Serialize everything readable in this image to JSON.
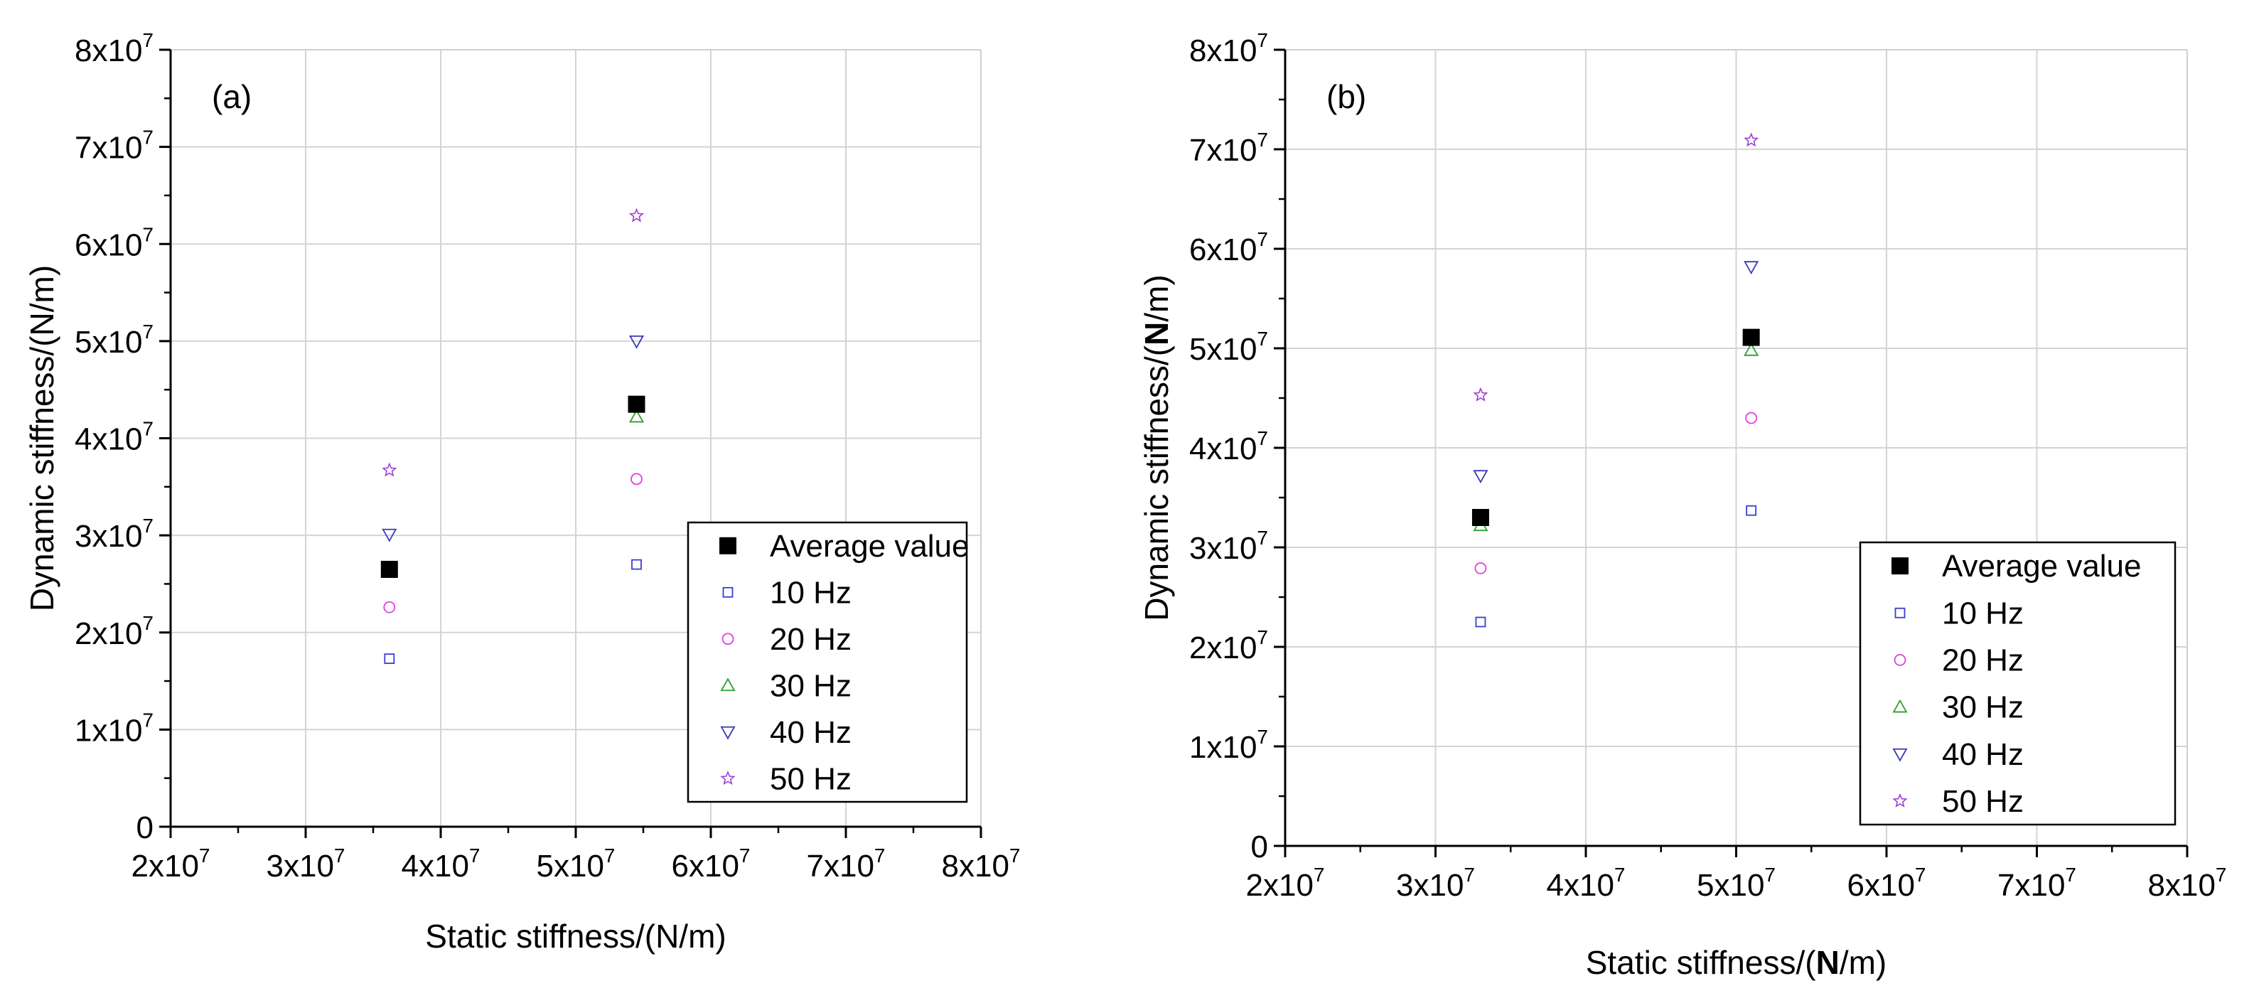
{
  "chart_data": [
    {
      "type": "scatter",
      "panel_label": "(a)",
      "xlabel": "Static stiffness/(N/m)",
      "ylabel": "Dynamic stiffness/(N/m)",
      "xlim": [
        20000000,
        80000000
      ],
      "ylim": [
        0,
        80000000
      ],
      "x_ticks": [
        20000000,
        30000000,
        40000000,
        50000000,
        60000000,
        70000000,
        80000000
      ],
      "y_ticks": [
        0,
        10000000,
        20000000,
        30000000,
        40000000,
        50000000,
        60000000,
        70000000,
        80000000
      ],
      "x_tick_labels": [
        {
          "base": "2x10",
          "exp": "7"
        },
        {
          "base": "3x10",
          "exp": "7"
        },
        {
          "base": "4x10",
          "exp": "7"
        },
        {
          "base": "5x10",
          "exp": "7"
        },
        {
          "base": "6x10",
          "exp": "7"
        },
        {
          "base": "7x10",
          "exp": "7"
        },
        {
          "base": "8x10",
          "exp": "7"
        }
      ],
      "y_tick_labels": [
        {
          "base": "0",
          "exp": ""
        },
        {
          "base": "1x10",
          "exp": "7"
        },
        {
          "base": "2x10",
          "exp": "7"
        },
        {
          "base": "3x10",
          "exp": "7"
        },
        {
          "base": "4x10",
          "exp": "7"
        },
        {
          "base": "5x10",
          "exp": "7"
        },
        {
          "base": "6x10",
          "exp": "7"
        },
        {
          "base": "7x10",
          "exp": "7"
        },
        {
          "base": "8x10",
          "exp": "7"
        }
      ],
      "grid": true,
      "legend_position": "bottom-right",
      "series": [
        {
          "name": "Average value",
          "marker": "filled-square",
          "color": "#000000",
          "x": [
            36200000,
            54500000
          ],
          "y": [
            26500000,
            43500000
          ]
        },
        {
          "name": "10 Hz",
          "marker": "square",
          "color": "#3b3bd6",
          "x": [
            36200000,
            54500000
          ],
          "y": [
            17300000,
            27000000
          ]
        },
        {
          "name": "20 Hz",
          "marker": "circle",
          "color": "#e040e0",
          "x": [
            36200000,
            54500000
          ],
          "y": [
            22600000,
            35800000
          ]
        },
        {
          "name": "30 Hz",
          "marker": "triangle-up",
          "color": "#2e9e2e",
          "x": [
            36200000,
            54500000
          ],
          "y": [
            26200000,
            42200000
          ]
        },
        {
          "name": "40 Hz",
          "marker": "triangle-down",
          "color": "#3a3ab8",
          "x": [
            36200000,
            54500000
          ],
          "y": [
            30100000,
            50000000
          ]
        },
        {
          "name": "50 Hz",
          "marker": "star",
          "color": "#a040d8",
          "x": [
            36200000,
            54500000
          ],
          "y": [
            36700000,
            62900000
          ]
        }
      ]
    },
    {
      "type": "scatter",
      "panel_label": "(b)",
      "xlabel_parts": [
        "Static stiffness/(",
        "N",
        "/m)"
      ],
      "ylabel_parts": [
        "Dynamic stiffness/(",
        "N",
        "/m)"
      ],
      "xlim": [
        20000000,
        80000000
      ],
      "ylim": [
        0,
        80000000
      ],
      "x_ticks": [
        20000000,
        30000000,
        40000000,
        50000000,
        60000000,
        70000000,
        80000000
      ],
      "y_ticks": [
        0,
        10000000,
        20000000,
        30000000,
        40000000,
        50000000,
        60000000,
        70000000,
        80000000
      ],
      "x_tick_labels": [
        {
          "base": "2x10",
          "exp": "7"
        },
        {
          "base": "3x10",
          "exp": "7"
        },
        {
          "base": "4x10",
          "exp": "7"
        },
        {
          "base": "5x10",
          "exp": "7"
        },
        {
          "base": "6x10",
          "exp": "7"
        },
        {
          "base": "7x10",
          "exp": "7"
        },
        {
          "base": "8x10",
          "exp": "7"
        }
      ],
      "y_tick_labels": [
        {
          "base": "0",
          "exp": ""
        },
        {
          "base": "1x10",
          "exp": "7"
        },
        {
          "base": "2x10",
          "exp": "7"
        },
        {
          "base": "3x10",
          "exp": "7"
        },
        {
          "base": "4x10",
          "exp": "7"
        },
        {
          "base": "5x10",
          "exp": "7"
        },
        {
          "base": "6x10",
          "exp": "7"
        },
        {
          "base": "7x10",
          "exp": "7"
        },
        {
          "base": "8x10",
          "exp": "7"
        }
      ],
      "grid": true,
      "legend_position": "bottom-right",
      "series": [
        {
          "name": "Average value",
          "marker": "filled-square",
          "color": "#000000",
          "x": [
            33000000,
            51000000
          ],
          "y": [
            33000000,
            51100000
          ]
        },
        {
          "name": "10 Hz",
          "marker": "square",
          "color": "#3b3bd6",
          "x": [
            33000000,
            51000000
          ],
          "y": [
            22500000,
            33700000
          ]
        },
        {
          "name": "20 Hz",
          "marker": "circle",
          "color": "#e040e0",
          "x": [
            33000000,
            51000000
          ],
          "y": [
            27900000,
            43000000
          ]
        },
        {
          "name": "30 Hz",
          "marker": "triangle-up",
          "color": "#2e9e2e",
          "x": [
            33000000,
            51000000
          ],
          "y": [
            32200000,
            49800000
          ]
        },
        {
          "name": "40 Hz",
          "marker": "triangle-down",
          "color": "#3a3ab8",
          "x": [
            33000000,
            51000000
          ],
          "y": [
            37200000,
            58200000
          ]
        },
        {
          "name": "50 Hz",
          "marker": "star",
          "color": "#a040d8",
          "x": [
            33000000,
            51000000
          ],
          "y": [
            45300000,
            70900000
          ]
        }
      ]
    }
  ]
}
